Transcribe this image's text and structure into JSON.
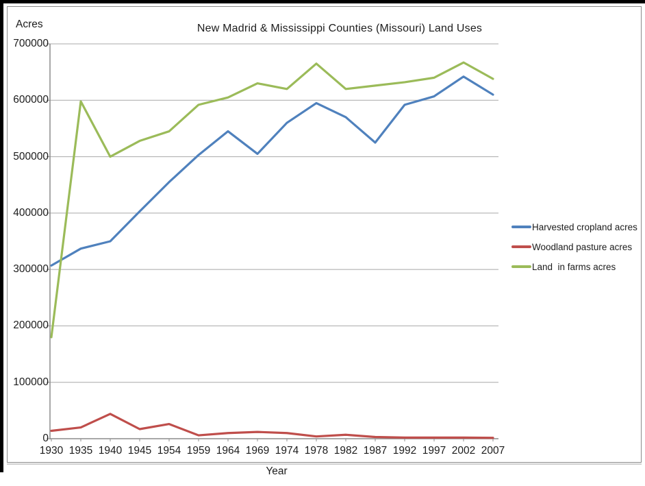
{
  "frame": {
    "background": "#ffffff",
    "border_color": "#8a8a8a"
  },
  "chart_data": {
    "type": "line",
    "title": "New Madrid & Mississippi Counties (Missouri) Land Uses",
    "xlabel": "Year",
    "ylabel": "Acres",
    "ylim": [
      0,
      700000
    ],
    "y_tick_step": 100000,
    "y_tick_labels": [
      "700000",
      "600000",
      "500000",
      "400000",
      "300000",
      "200000",
      "100000",
      "0"
    ],
    "grid": true,
    "legend_position": "right",
    "categories": [
      "1930",
      "1935",
      "1940",
      "1945",
      "1954",
      "1959",
      "1964",
      "1969",
      "1974",
      "1978",
      "1982",
      "1987",
      "1992",
      "1997",
      "2002",
      "2007"
    ],
    "series": [
      {
        "name": "Harvested cropland acres",
        "color": "#4f81bd",
        "values": [
          307000,
          337000,
          350000,
          403000,
          455000,
          503000,
          545000,
          505000,
          560000,
          595000,
          570000,
          525000,
          592000,
          607000,
          642000,
          610000
        ]
      },
      {
        "name": "Woodland pasture acres",
        "color": "#bf4e4b",
        "values": [
          14000,
          20000,
          44000,
          17000,
          26000,
          6000,
          10000,
          12000,
          10000,
          4000,
          7000,
          3000,
          2000,
          2000,
          2000,
          1500
        ]
      },
      {
        "name": "Land  in farms acres",
        "color": "#9bbb59",
        "values": [
          180000,
          598000,
          500000,
          528000,
          545000,
          592000,
          605000,
          630000,
          620000,
          665000,
          620000,
          626000,
          632000,
          640000,
          667000,
          638000
        ]
      }
    ],
    "colors": {
      "gridline": "#a8a8a8",
      "axis": "#8c8c8c",
      "text": "#1c1c1c"
    }
  }
}
